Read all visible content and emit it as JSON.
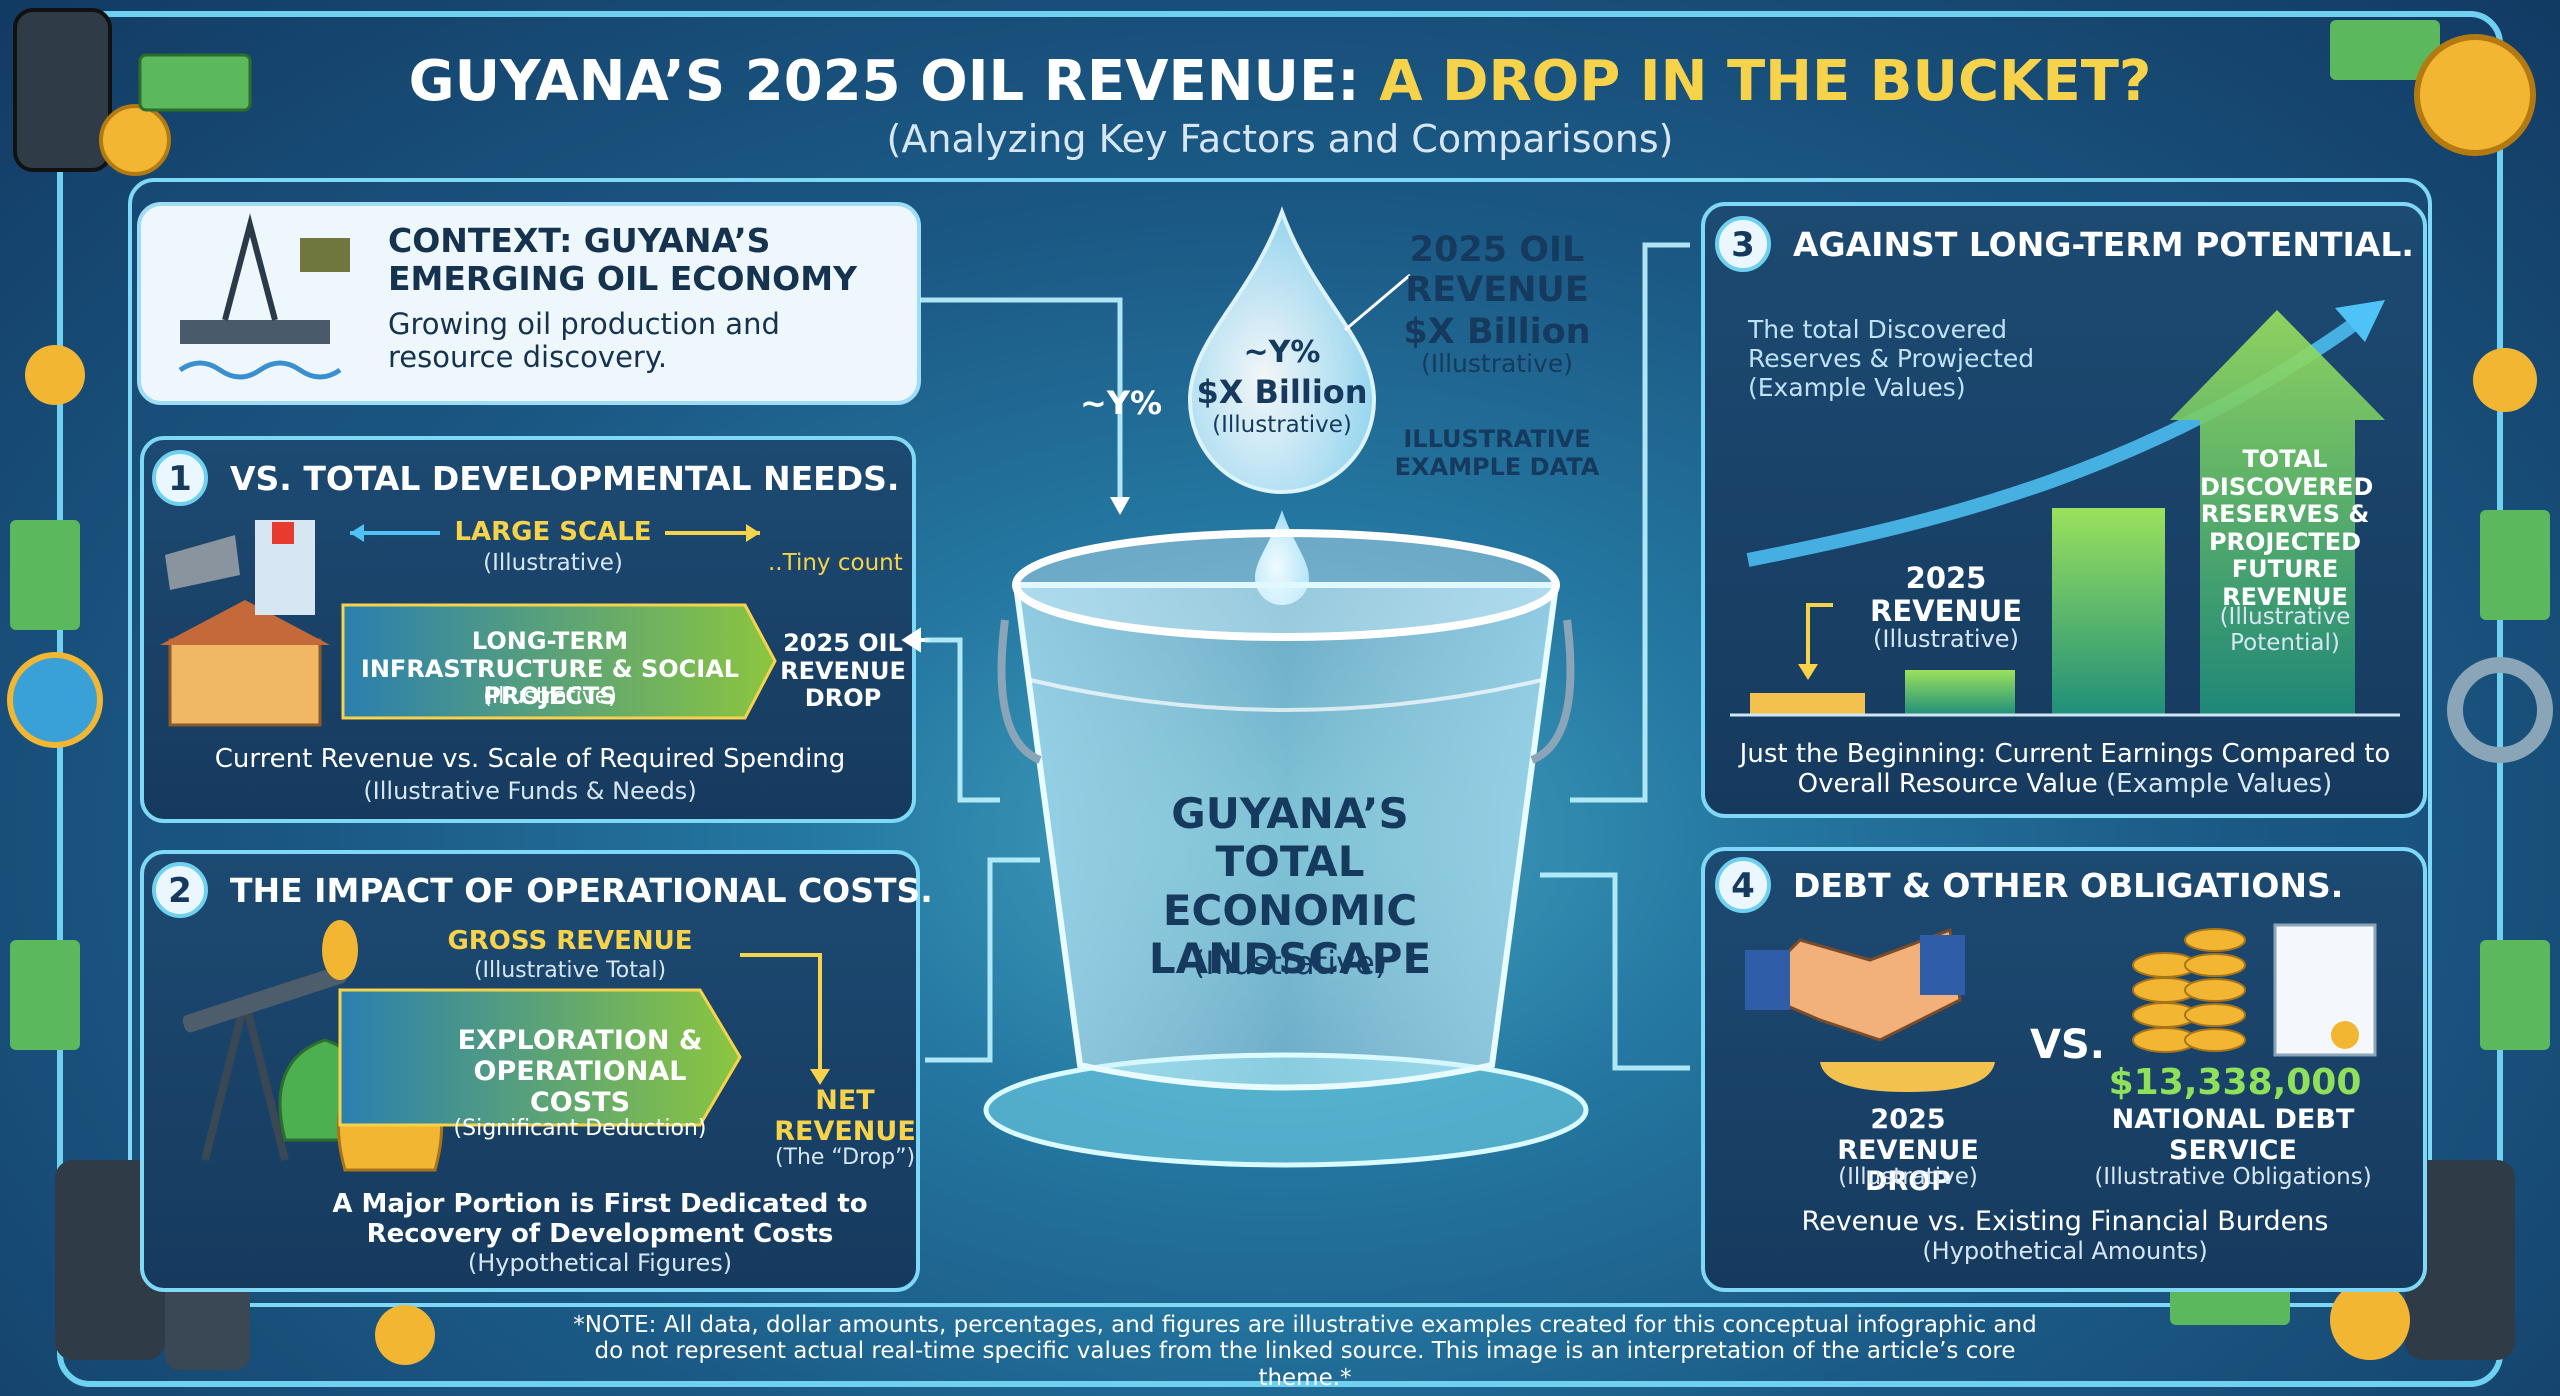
{
  "header": {
    "title_main": "GUYANA’S 2025 OIL REVENUE:",
    "title_highlight": "A DROP IN THE BUCKET?",
    "subtitle": "(Analyzing Key Factors and Comparisons)"
  },
  "context": {
    "title": "CONTEXT: GUYANA’S EMERGING OIL ECONOMY",
    "text": "Growing oil production and resource discovery."
  },
  "center": {
    "arrow_label": "~Y%",
    "drop_percent": "~Y%",
    "drop_amount": "$X Billion",
    "drop_note": "(Illustrative)",
    "side_title": "2025 OIL REVENUE",
    "side_amount": "$X Billion",
    "side_note": "(Illustrative)",
    "side_data_note": "ILLUSTRATIVE EXAMPLE DATA",
    "bucket_label": "GUYANA’S TOTAL ECONOMIC LANDSCAPE",
    "bucket_note": "(Illustrative)"
  },
  "section1": {
    "number": "1",
    "title": "VS. TOTAL DEVELOPMENTAL NEEDS.",
    "scale_label": "LARGE SCALE",
    "scale_note": "(Illustrative)",
    "tiny_label": "..Tiny count",
    "bar_label": "LONG-TERM INFRASTRUCTURE & SOCIAL PROJECTS",
    "bar_note": "(Illustrative)",
    "drop_label": "2025 OIL REVENUE DROP",
    "caption": "Current Revenue vs. Scale of Required Spending",
    "caption_note": "(Illustrative Funds & Needs)"
  },
  "section2": {
    "number": "2",
    "title": "THE IMPACT OF OPERATIONAL COSTS.",
    "gross_label": "GROSS REVENUE",
    "gross_note": "(Illustrative Total)",
    "costs_label": "EXPLORATION & OPERATIONAL COSTS",
    "costs_note": "(Significant Deduction)",
    "net_label": "NET REVENUE",
    "net_note": "(The “Drop”)",
    "caption": "A Major Portion is First Dedicated to Recovery of Development Costs",
    "caption_note": "(Hypothetical Figures)"
  },
  "section3": {
    "number": "3",
    "title": "AGAINST LONG-TERM POTENTIAL.",
    "intro": "The total Discovered Reserves & Prowjected",
    "intro_note": "(Example Values)",
    "revenue_label": "2025 REVENUE",
    "revenue_note": "(Illustrative)",
    "reserves_label": "TOTAL DISCOVERED RESERVES & PROJECTED FUTURE REVENUE",
    "reserves_note": "(Illustrative Potential)",
    "caption": "Just the Beginning: Current Earnings Compared to Overall Resource Value",
    "caption_note": "(Example Values)"
  },
  "section4": {
    "number": "4",
    "title": "DEBT & OTHER OBLIGATIONS.",
    "vs": "VS.",
    "debt_amount": "$13,338,000",
    "drop_label": "2025 REVENUE DROP",
    "drop_note": "(Illustrative)",
    "debt_label": "NATIONAL DEBT SERVICE",
    "debt_note": "(Illustrative Obligations)",
    "caption": "Revenue vs. Existing Financial Burdens",
    "caption_note": "(Hypothetical Amounts)"
  },
  "footer": {
    "note": "*NOTE: All data, dollar amounts, percentages, and figures are illustrative examples created for this conceptual infographic and do not represent actual real-time specific values from the linked source. This image is an interpretation of the article’s core theme.*"
  }
}
